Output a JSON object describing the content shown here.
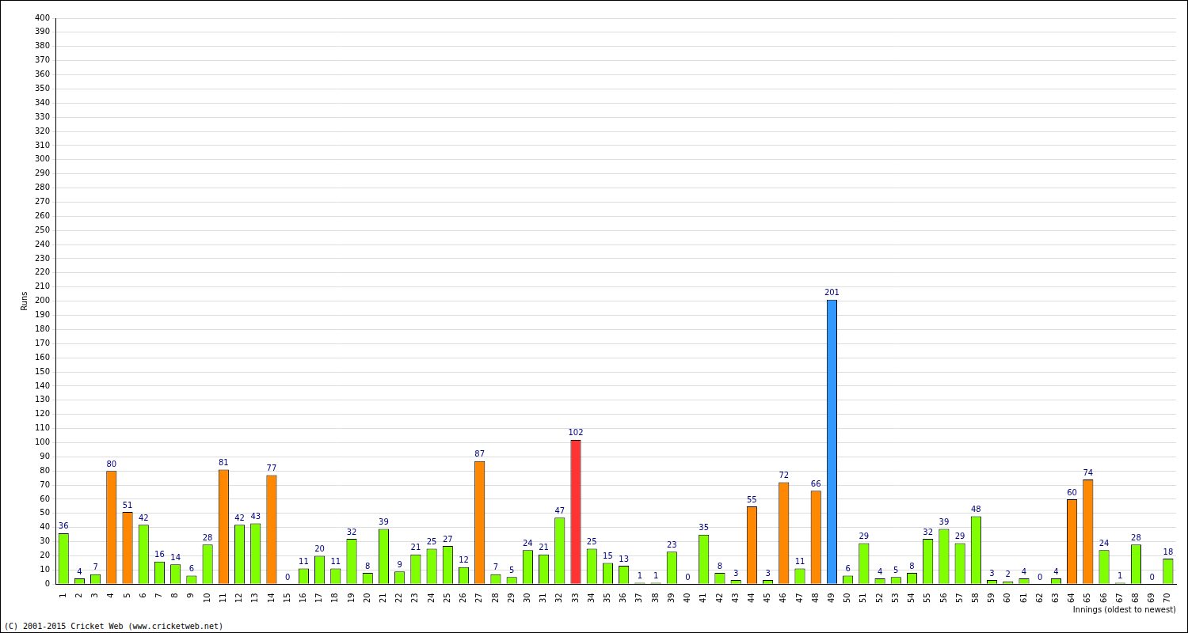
{
  "chart_data": {
    "type": "bar",
    "categories": [
      "1",
      "2",
      "3",
      "4",
      "5",
      "6",
      "7",
      "8",
      "9",
      "10",
      "11",
      "12",
      "13",
      "14",
      "15",
      "16",
      "17",
      "18",
      "19",
      "20",
      "21",
      "22",
      "23",
      "24",
      "25",
      "26",
      "27",
      "28",
      "29",
      "30",
      "31",
      "32",
      "33",
      "34",
      "35",
      "36",
      "37",
      "38",
      "39",
      "40",
      "41",
      "42",
      "43",
      "44",
      "45",
      "46",
      "47",
      "48",
      "49",
      "50",
      "51",
      "52",
      "53",
      "54",
      "55",
      "56",
      "57",
      "58",
      "59",
      "60",
      "61",
      "62",
      "63",
      "64",
      "65",
      "66",
      "67",
      "68",
      "69",
      "70"
    ],
    "values": [
      36,
      4,
      7,
      80,
      51,
      42,
      16,
      14,
      6,
      28,
      81,
      42,
      43,
      77,
      0,
      11,
      20,
      11,
      32,
      8,
      39,
      9,
      21,
      25,
      27,
      12,
      87,
      7,
      5,
      24,
      21,
      47,
      102,
      25,
      15,
      13,
      1,
      1,
      23,
      0,
      35,
      8,
      3,
      55,
      3,
      72,
      11,
      66,
      201,
      6,
      29,
      4,
      5,
      8,
      32,
      39,
      29,
      48,
      3,
      2,
      4,
      0,
      4,
      60,
      74,
      24,
      1,
      28,
      0,
      18
    ],
    "colors": [
      "#80ff00",
      "#80ff00",
      "#80ff00",
      "#ff8800",
      "#ff8800",
      "#80ff00",
      "#80ff00",
      "#80ff00",
      "#80ff00",
      "#80ff00",
      "#ff8800",
      "#80ff00",
      "#80ff00",
      "#ff8800",
      "#80ff00",
      "#80ff00",
      "#80ff00",
      "#80ff00",
      "#80ff00",
      "#80ff00",
      "#80ff00",
      "#80ff00",
      "#80ff00",
      "#80ff00",
      "#80ff00",
      "#80ff00",
      "#ff8800",
      "#80ff00",
      "#80ff00",
      "#80ff00",
      "#80ff00",
      "#80ff00",
      "#ff3333",
      "#80ff00",
      "#80ff00",
      "#80ff00",
      "#80ff00",
      "#80ff00",
      "#80ff00",
      "#80ff00",
      "#80ff00",
      "#80ff00",
      "#80ff00",
      "#ff8800",
      "#80ff00",
      "#ff8800",
      "#80ff00",
      "#ff8800",
      "#3399ff",
      "#80ff00",
      "#80ff00",
      "#80ff00",
      "#80ff00",
      "#80ff00",
      "#80ff00",
      "#80ff00",
      "#80ff00",
      "#80ff00",
      "#80ff00",
      "#80ff00",
      "#80ff00",
      "#80ff00",
      "#80ff00",
      "#ff8800",
      "#ff8800",
      "#80ff00",
      "#80ff00",
      "#80ff00",
      "#80ff00",
      "#80ff00"
    ],
    "x_label": "Innings (oldest to newest)",
    "y_label": "Runs",
    "ylim": [
      0,
      400
    ],
    "yticks": [
      0,
      10,
      20,
      30,
      40,
      50,
      60,
      70,
      80,
      90,
      100,
      110,
      120,
      130,
      140,
      150,
      160,
      170,
      180,
      190,
      200,
      210,
      220,
      230,
      240,
      250,
      260,
      270,
      280,
      290,
      300,
      310,
      320,
      330,
      340,
      350,
      360,
      370,
      380,
      390,
      400
    ],
    "grid": true,
    "data_labels": true,
    "annotations": [
      "(C) 2001-2015 Cricket Web (www.cricketweb.net)"
    ]
  }
}
